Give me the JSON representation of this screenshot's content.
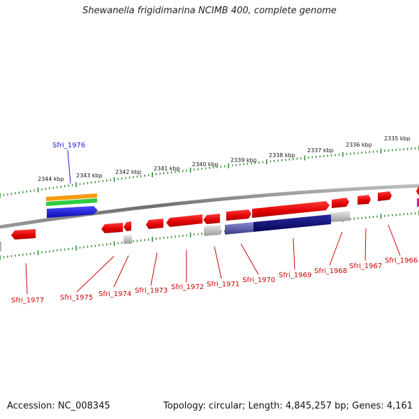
{
  "title": "Shewanella frigidimarina NCIMB 400, complete genome",
  "footer": {
    "accession": "Accession: NC_008345",
    "info": "Topology: circular; Length: 4,845,257 bp; Genes: 4,161"
  },
  "colors": {
    "backbone": "#7a7a7a",
    "ticks": "#2e8b2e",
    "gene": "#e00000",
    "highlight_label": "#1a1adc",
    "gene_label": "#cc0000",
    "grey_feature": "#b4b4b4",
    "navy_feature": "#0a0a78",
    "orange_feature": "#f39c12",
    "green_feature": "#2ecc40",
    "blue_feature": "#1f1fe0",
    "magenta_feature": "#e0178a"
  },
  "kbp_labels": [
    "2344 kbp",
    "2343 kbp",
    "2342 kbp",
    "2341 kbp",
    "2340 kbp",
    "2339 kbp",
    "2338 kbp",
    "2337 kbp",
    "2336 kbp",
    "2335 kbp"
  ],
  "highlight_gene": "Sfri_1976",
  "gene_labels": [
    "Sfri_1977",
    "Sfri_1975",
    "Sfri_1974",
    "Sfri_1973",
    "Sfri_1972",
    "Sfri_1971",
    "Sfri_1970",
    "Sfri_1969",
    "Sfri_1968",
    "Sfri_1967",
    "Sfri_1966"
  ]
}
